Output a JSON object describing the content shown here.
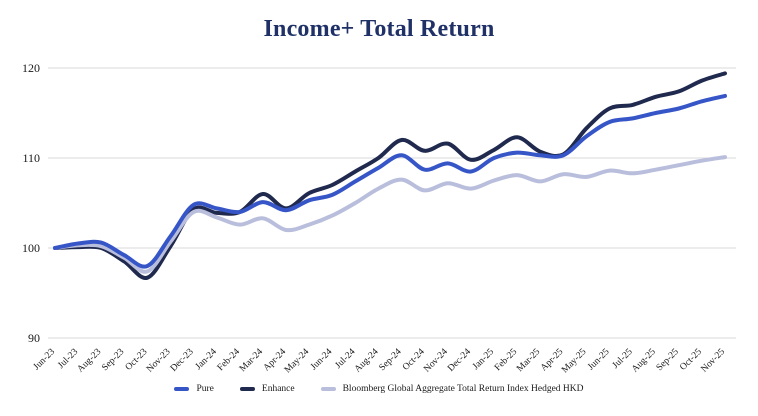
{
  "colors": {
    "title": "#1f3166",
    "grid": "#d9d9d9",
    "axis_text": "#1a1a1a",
    "background": "#ffffff"
  },
  "chart_data": {
    "type": "line",
    "title": "Income+ Total Return",
    "xlabel": "",
    "ylabel": "",
    "ylim": [
      90,
      120
    ],
    "yticks": [
      90,
      100,
      110,
      120
    ],
    "grid": "horizontal",
    "legend_position": "bottom",
    "categories": [
      "Jun-23",
      "Jul-23",
      "Aug-23",
      "Sep-23",
      "Oct-23",
      "Nov-23",
      "Dec-23",
      "Jan-24",
      "Feb-24",
      "Mar-24",
      "Apr-24",
      "May-24",
      "Jun-24",
      "Jul-24",
      "Aug-24",
      "Sep-24",
      "Oct-24",
      "Nov-24",
      "Dec-24",
      "Jan-25",
      "Feb-25",
      "Mar-25",
      "Apr-25",
      "May-25",
      "Jun-25",
      "Jul-25",
      "Aug-25",
      "Sep-25",
      "Oct-25",
      "Nov-25"
    ],
    "series": [
      {
        "name": "Pure",
        "color": "#3656c8",
        "values": [
          100.0,
          100.5,
          100.6,
          99.2,
          98.0,
          101.3,
          104.8,
          104.4,
          104.0,
          105.1,
          104.2,
          105.3,
          105.9,
          107.4,
          108.9,
          110.3,
          108.7,
          109.4,
          108.5,
          110.0,
          110.6,
          110.3,
          110.3,
          112.4,
          114.0,
          114.4,
          115.0,
          115.5,
          116.3,
          116.9
        ]
      },
      {
        "name": "Enhance",
        "color": "#20294e",
        "values": [
          100.0,
          100.1,
          100.0,
          98.5,
          96.7,
          100.2,
          104.3,
          103.9,
          104.0,
          106.0,
          104.4,
          106.1,
          107.0,
          108.5,
          110.0,
          112.0,
          110.8,
          111.6,
          109.8,
          110.9,
          112.3,
          110.7,
          110.4,
          113.3,
          115.5,
          115.9,
          116.8,
          117.4,
          118.6,
          119.4
        ]
      },
      {
        "name": "Bloomberg Global Aggregate Total Return Index Hedged HKD",
        "color": "#b9bedc",
        "values": [
          100.0,
          100.3,
          100.2,
          98.9,
          97.4,
          100.7,
          104.0,
          103.4,
          102.6,
          103.3,
          102.0,
          102.6,
          103.6,
          105.0,
          106.6,
          107.6,
          106.4,
          107.2,
          106.6,
          107.5,
          108.1,
          107.4,
          108.2,
          107.9,
          108.6,
          108.3,
          108.7,
          109.2,
          109.7,
          110.1
        ]
      }
    ]
  }
}
